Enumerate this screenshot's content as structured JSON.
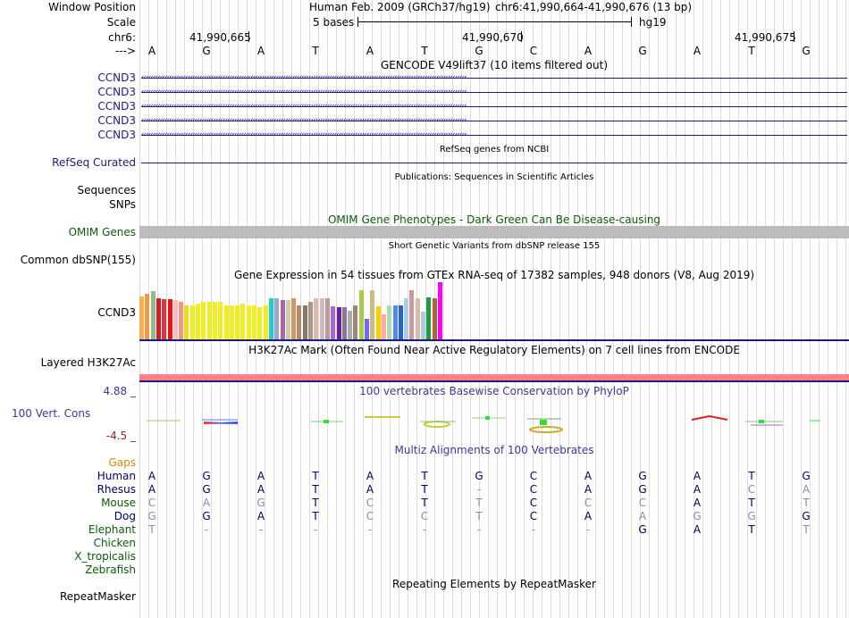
{
  "header": {
    "window_position_label": "Window Position",
    "scale_label": "Scale",
    "chrom_label": "chr6:",
    "strand_label": "--->",
    "assembly_text": "Human Feb. 2009 (GRCh37/hg19)",
    "position_text": "chr6:41,990,664-41,990,676 (13 bp)",
    "scale_text": "5 bases",
    "db_text": "hg19",
    "coords": [
      "41,990,665",
      "41,990,670",
      "41,990,675"
    ],
    "bases": [
      "A",
      "G",
      "A",
      "T",
      "A",
      "T",
      "G",
      "C",
      "A",
      "G",
      "A",
      "T",
      "G"
    ]
  },
  "tracks": {
    "gencode": {
      "title": "GENCODE V49lift37 (10 items filtered out)",
      "genes": [
        "CCND3",
        "CCND3",
        "CCND3",
        "CCND3",
        "CCND3"
      ],
      "color": "#1a1a80"
    },
    "refseq": {
      "title": "RefSeq genes from NCBI",
      "label": "RefSeq Curated",
      "color": "#1a1a80"
    },
    "publications": {
      "title": "Publications: Sequences in Scientific Articles",
      "labels": [
        "Sequences",
        "SNPs"
      ]
    },
    "omim": {
      "title": "OMIM Gene Phenotypes - Dark Green Can Be Disease-causing",
      "label": "OMIM Genes",
      "color": "#0a5c0a"
    },
    "dbsnp": {
      "title": "Short Genetic Variants from dbSNP release 155",
      "label": "Common dbSNP(155)"
    },
    "gtex": {
      "title": "Gene Expression in 54 tissues from GTEx RNA-seq of 17382 samples, 948 donors (V8, Aug 2019)",
      "label": "CCND3",
      "values": [
        0.75,
        0.8,
        0.85,
        0.72,
        0.7,
        0.7,
        0.68,
        0.66,
        0.6,
        0.6,
        0.62,
        0.66,
        0.66,
        0.66,
        0.66,
        0.6,
        0.6,
        0.6,
        0.62,
        0.6,
        0.6,
        0.56,
        0.6,
        0.72,
        0.72,
        0.68,
        0.68,
        0.72,
        0.6,
        0.6,
        0.66,
        0.72,
        0.72,
        0.72,
        0.58,
        0.56,
        0.56,
        0.5,
        0.6,
        0.86,
        0.36,
        0.86,
        0.58,
        0.44,
        0.6,
        0.6,
        0.6,
        0.72,
        0.86,
        0.72,
        0.48,
        0.74,
        0.72,
        1.0
      ],
      "colors": [
        "#ffaa55",
        "#ee9944",
        "#8fbc8f",
        "#cc2222",
        "#dd3344",
        "#ee1111",
        "#ffbbbb",
        "#ee9988",
        "#eedd11",
        "#eeee22",
        "#eeee22",
        "#eeee22",
        "#eeee22",
        "#eeee22",
        "#eeee22",
        "#eeee22",
        "#eeee22",
        "#eeee22",
        "#eeee22",
        "#eeee22",
        "#eeee22",
        "#eeee22",
        "#eeee22",
        "#22cccc",
        "#99aacc",
        "#aa66aa",
        "#ccccaa",
        "#cc9966",
        "#bb8866",
        "#887766",
        "#aa9988",
        "#ddbbaa",
        "#ccbbbb",
        "#bb9999",
        "#aa66cc",
        "#662299",
        "#887799",
        "#aaaaaa",
        "#998877",
        "#aacc44",
        "#7766ee",
        "#ccbb88",
        "#ffcc00",
        "#ffaaaa",
        "#aaddaa",
        "#5588ee",
        "#2266cc",
        "#aaccee",
        "#cc9999",
        "#ddbbaa",
        "#aaccdd",
        "#229944",
        "#aa6633",
        "#ff00ff"
      ]
    },
    "h3k27ac": {
      "title": "H3K27Ac Mark (Often Found Near Active Regulatory Elements) on 7 cell lines from ENCODE",
      "label": "Layered H3K27Ac",
      "color": "#ff8080"
    },
    "phylop": {
      "title": "100 vertebrates Basewise Conservation by PhyloP",
      "label": "100 Vert. Cons",
      "max_label": "4.88 _",
      "min_label": "-4.5 _",
      "color": "#3a3a99"
    },
    "multiz": {
      "title": "Multiz Alignments of 100 Vertebrates",
      "gaps_label": "Gaps",
      "species": [
        {
          "name": "Human",
          "color": "#000066",
          "bases": [
            "A",
            "G",
            "A",
            "T",
            "A",
            "T",
            "G",
            "C",
            "A",
            "G",
            "A",
            "T",
            "G"
          ]
        },
        {
          "name": "Rhesus",
          "color": "#000066",
          "bases": [
            "A",
            "G",
            "A",
            "T",
            "A",
            "T",
            "-",
            "C",
            "A",
            "G",
            "A",
            "C",
            "A"
          ]
        },
        {
          "name": "Mouse",
          "color": "#0a5c0a",
          "bases": [
            "C",
            "A",
            "G",
            "T",
            "C",
            "T",
            "T",
            "C",
            "C",
            "C",
            "A",
            "T",
            "T"
          ]
        },
        {
          "name": "Dog",
          "color": "#000066",
          "bases": [
            "G",
            "G",
            "A",
            "T",
            "C",
            "C",
            "T",
            "C",
            "A",
            "A",
            "G",
            "G",
            "G"
          ]
        },
        {
          "name": "Elephant",
          "color": "#0a5c0a",
          "bases": [
            "T",
            "-",
            "-",
            "-",
            "-",
            "-",
            "-",
            "-",
            "-",
            "G",
            "A",
            "T",
            "T"
          ]
        },
        {
          "name": "Chicken",
          "color": "#0a5c0a",
          "bases": []
        },
        {
          "name": "X_tropicalis",
          "color": "#0a5c0a",
          "bases": []
        },
        {
          "name": "Zebrafish",
          "color": "#0a5c0a",
          "bases": []
        }
      ]
    },
    "repeatmasker": {
      "title": "Repeating Elements by RepeatMasker",
      "label": "RepeatMasker"
    }
  },
  "colors": {
    "link": "#1a1a80",
    "gaps": "#dd8800",
    "scale_max": "#3a3a99",
    "scale_min": "#992222",
    "grid": "#e8d8d8"
  }
}
